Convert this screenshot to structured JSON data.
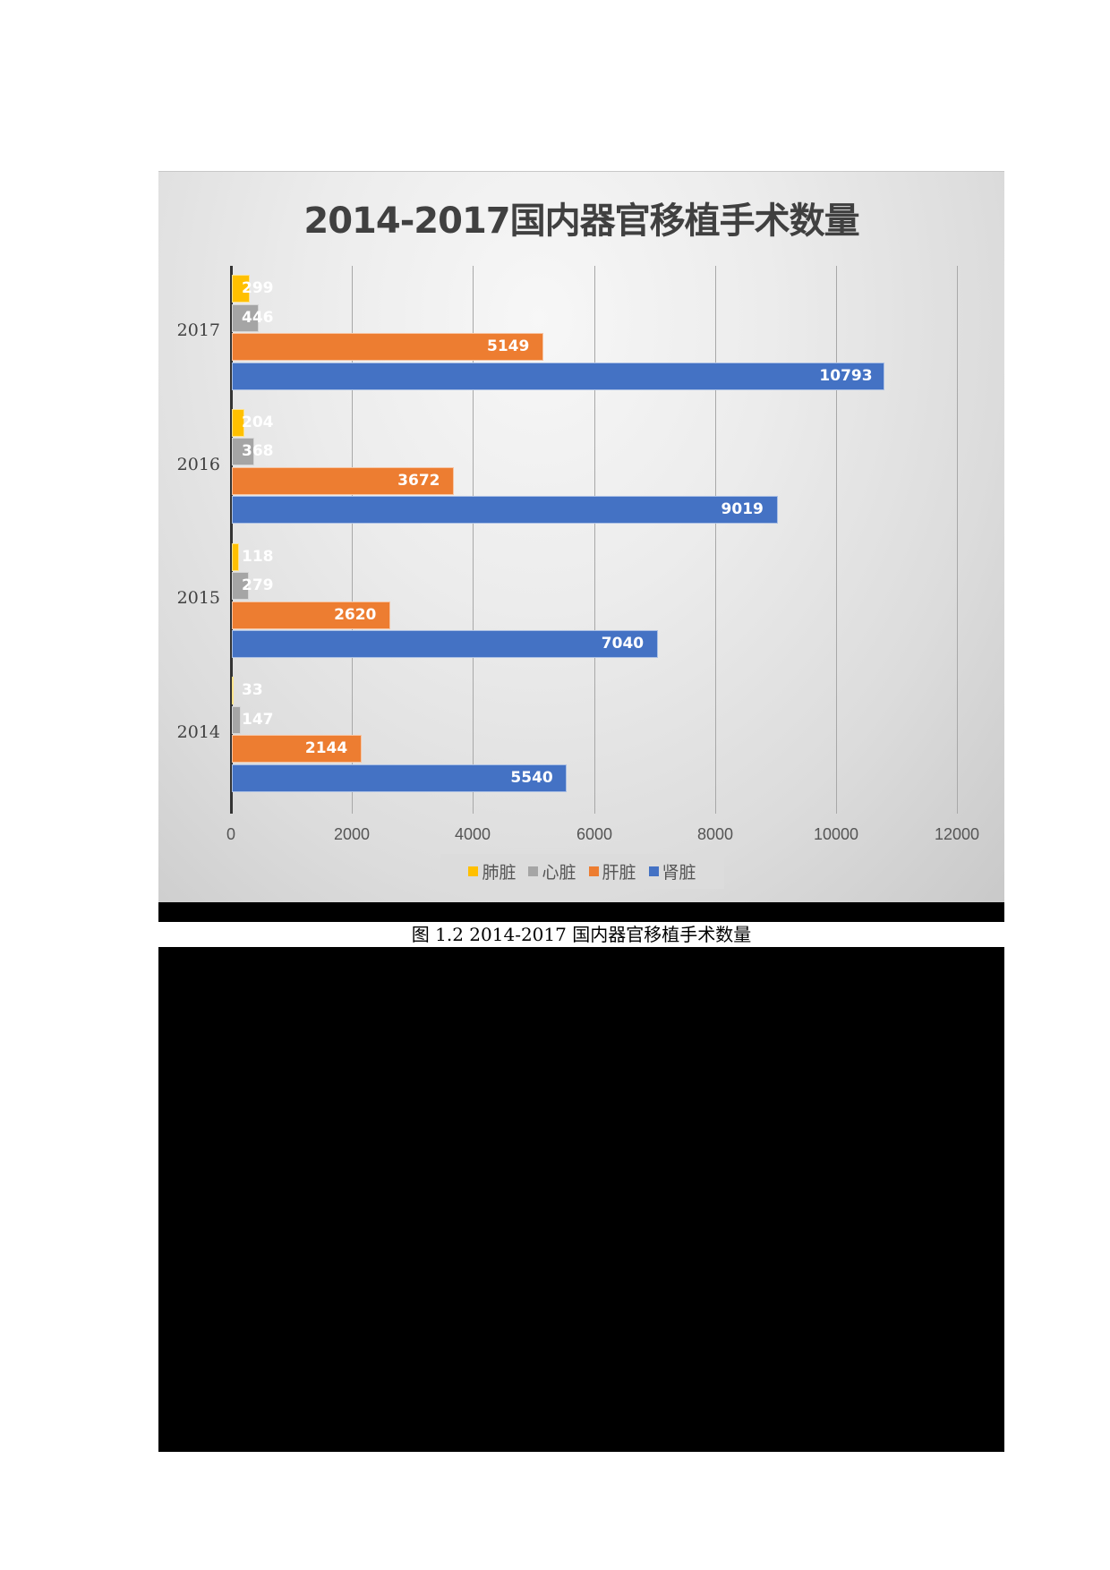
{
  "chart_data": {
    "type": "bar",
    "orientation": "horizontal",
    "title": "2014-2017国内器官移植手术数量",
    "categories": [
      "2017",
      "2016",
      "2015",
      "2014"
    ],
    "series": [
      {
        "name": "肺脏",
        "color": "#FFC000",
        "values": [
          299,
          204,
          118,
          33
        ]
      },
      {
        "name": "心脏",
        "color": "#A5A5A5",
        "values": [
          446,
          368,
          279,
          147
        ]
      },
      {
        "name": "肝脏",
        "color": "#ED7D31",
        "values": [
          5149,
          3672,
          2620,
          2144
        ]
      },
      {
        "name": "肾脏",
        "color": "#4472C4",
        "values": [
          10793,
          9019,
          7040,
          5540
        ]
      }
    ],
    "xlabel": "",
    "ylabel": "",
    "xlim": [
      0,
      12000
    ],
    "x_ticks": [
      "0",
      "2000",
      "4000",
      "6000",
      "8000",
      "10000",
      "12000"
    ],
    "grid": true,
    "legend_position": "bottom",
    "data_labels": true
  },
  "caption": "图 1.2 2014-2017 国内器官移植手术数量",
  "legend": [
    {
      "label": "肺脏",
      "color": "#FFC000"
    },
    {
      "label": "心脏",
      "color": "#A5A5A5"
    },
    {
      "label": "肝脏",
      "color": "#ED7D31"
    },
    {
      "label": "肾脏",
      "color": "#4472C4"
    }
  ]
}
